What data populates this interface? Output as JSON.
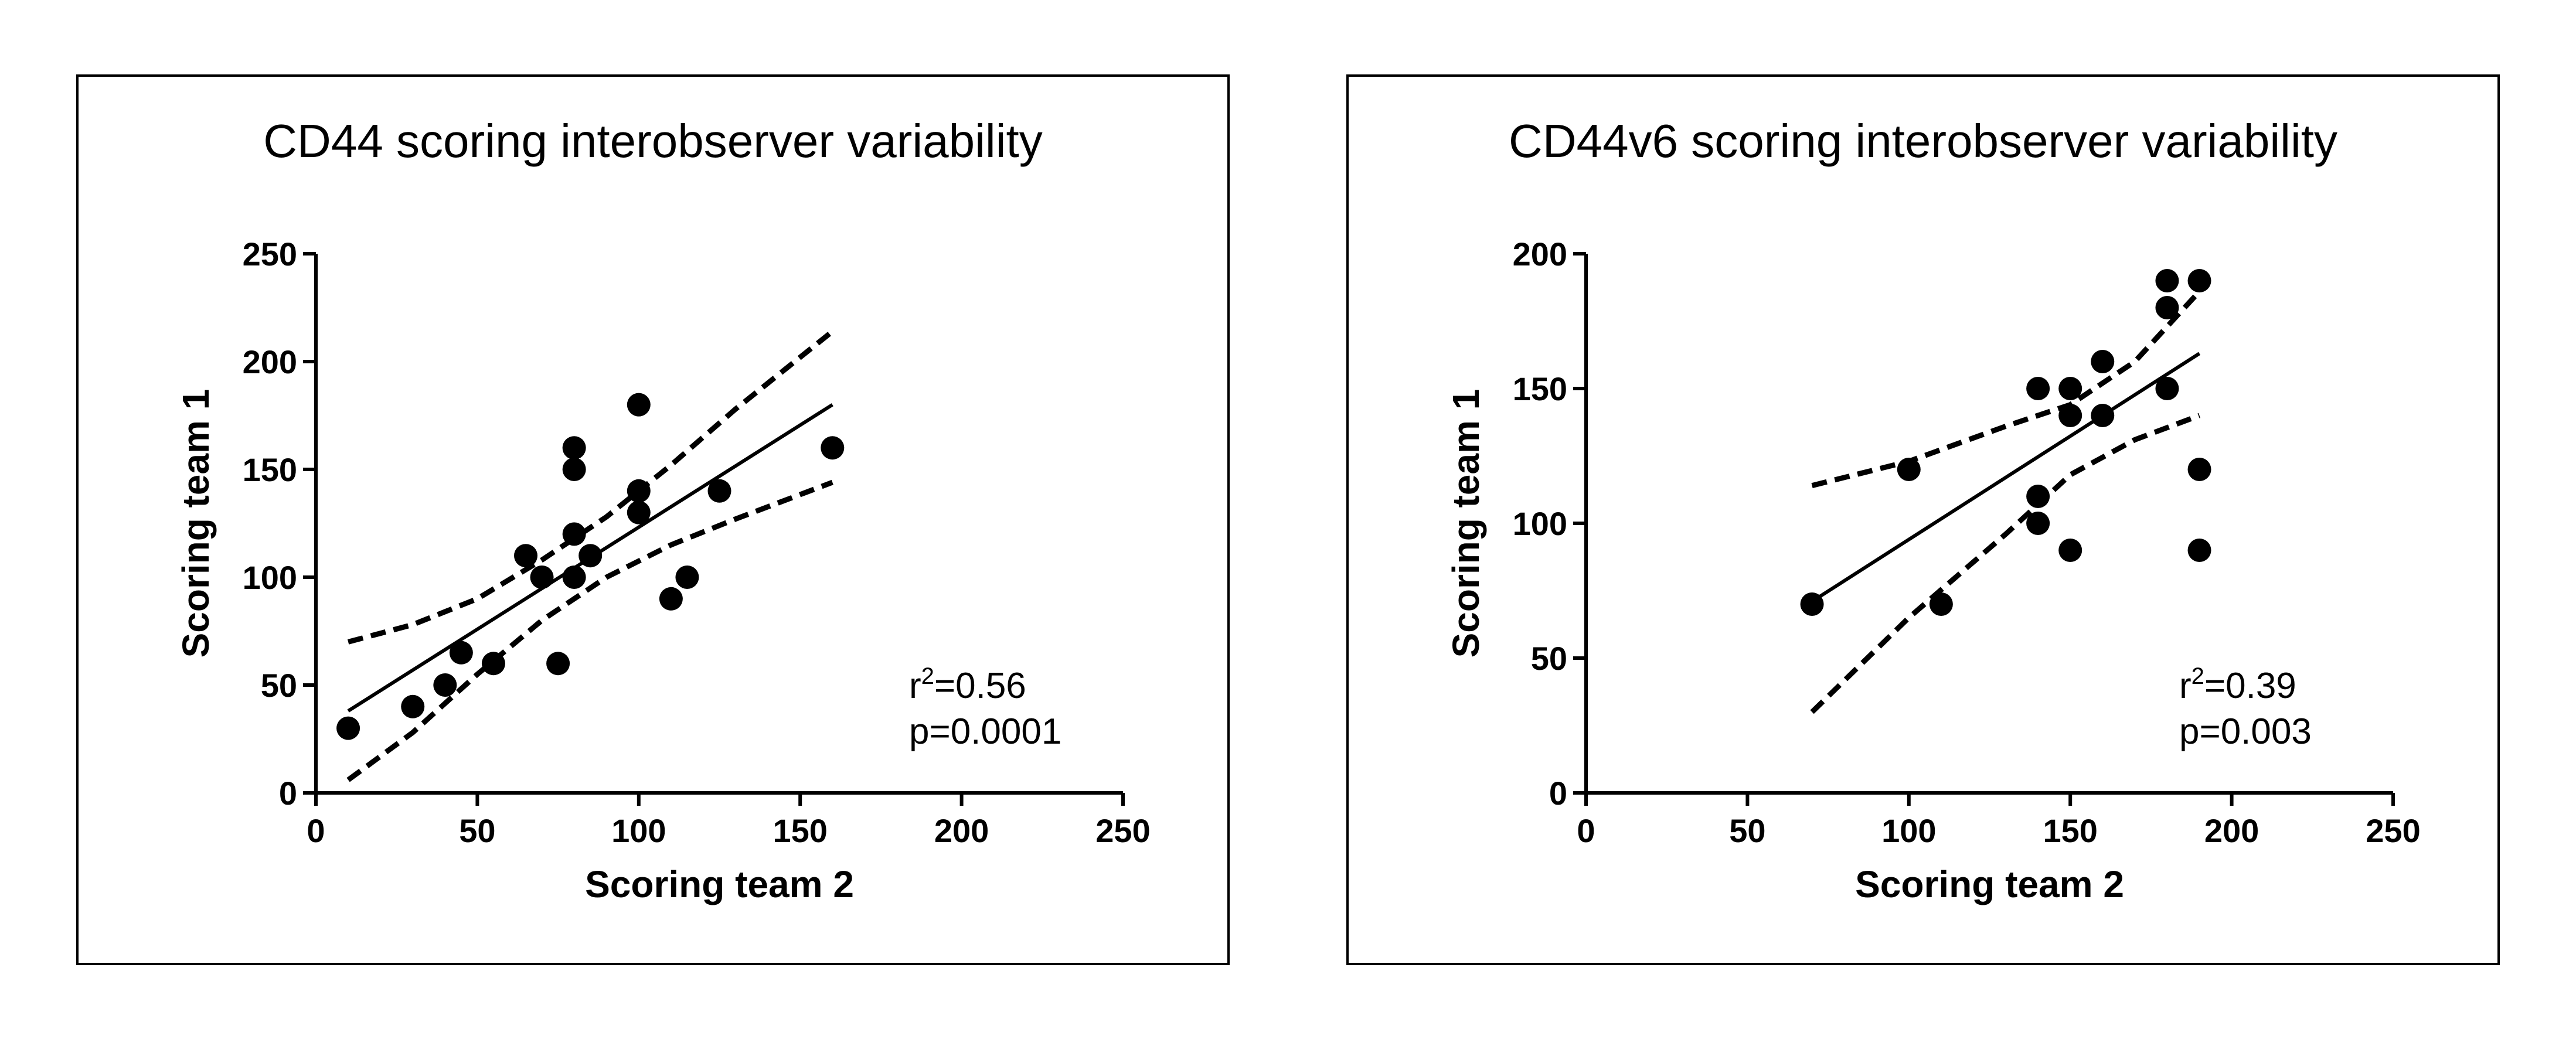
{
  "chart_data": [
    {
      "type": "scatter",
      "title": "CD44 scoring interobserver variability",
      "xlabel": "Scoring team 2",
      "ylabel": "Scoring team 1",
      "xlim": [
        0,
        250
      ],
      "ylim": [
        0,
        250
      ],
      "xticks": [
        0,
        50,
        100,
        150,
        200,
        250
      ],
      "yticks": [
        0,
        50,
        100,
        150,
        200,
        250
      ],
      "grid": false,
      "stats": {
        "r2_prefix": "r",
        "r2_sup": "2",
        "r2_value": "=0.56",
        "p_text": "p=0.0001"
      },
      "series": [
        {
          "kind": "points",
          "points": [
            [
              10,
              30
            ],
            [
              30,
              40
            ],
            [
              40,
              50
            ],
            [
              45,
              65
            ],
            [
              55,
              60
            ],
            [
              65,
              110
            ],
            [
              70,
              100
            ],
            [
              75,
              60
            ],
            [
              80,
              160
            ],
            [
              80,
              150
            ],
            [
              80,
              120
            ],
            [
              80,
              100
            ],
            [
              85,
              110
            ],
            [
              100,
              180
            ],
            [
              100,
              140
            ],
            [
              100,
              130
            ],
            [
              110,
              90
            ],
            [
              115,
              100
            ],
            [
              125,
              140
            ],
            [
              160,
              160
            ]
          ]
        },
        {
          "kind": "fit",
          "points": [
            [
              10,
              38
            ],
            [
              160,
              180
            ]
          ]
        },
        {
          "kind": "ci",
          "points": [
            [
              10,
              70
            ],
            [
              30,
              78
            ],
            [
              50,
              90
            ],
            [
              70,
              108
            ],
            [
              90,
              128
            ],
            [
              110,
              152
            ],
            [
              130,
              178
            ],
            [
              160,
              214
            ]
          ]
        },
        {
          "kind": "ci",
          "points": [
            [
              10,
              6
            ],
            [
              30,
              28
            ],
            [
              50,
              55
            ],
            [
              70,
              80
            ],
            [
              90,
              100
            ],
            [
              110,
              115
            ],
            [
              130,
              127
            ],
            [
              160,
              144
            ]
          ]
        }
      ]
    },
    {
      "type": "scatter",
      "title": "CD44v6 scoring interobserver variability",
      "xlabel": "Scoring team 2",
      "ylabel": "Scoring team 1",
      "xlim": [
        0,
        250
      ],
      "ylim": [
        0,
        200
      ],
      "xticks": [
        0,
        50,
        100,
        150,
        200,
        250
      ],
      "yticks": [
        0,
        50,
        100,
        150,
        200
      ],
      "grid": false,
      "stats": {
        "r2_prefix": "r",
        "r2_sup": "2",
        "r2_value": "=0.39",
        "p_text": "p=0.003"
      },
      "series": [
        {
          "kind": "points",
          "points": [
            [
              70,
              70
            ],
            [
              100,
              120
            ],
            [
              110,
              70
            ],
            [
              140,
              150
            ],
            [
              140,
              110
            ],
            [
              140,
              100
            ],
            [
              150,
              150
            ],
            [
              150,
              140
            ],
            [
              150,
              90
            ],
            [
              160,
              160
            ],
            [
              160,
              140
            ],
            [
              180,
              190
            ],
            [
              180,
              180
            ],
            [
              180,
              150
            ],
            [
              190,
              190
            ],
            [
              190,
              120
            ],
            [
              190,
              90
            ]
          ]
        },
        {
          "kind": "fit",
          "points": [
            [
              70,
              71
            ],
            [
              190,
              163
            ]
          ]
        },
        {
          "kind": "ci",
          "points": [
            [
              70,
              114
            ],
            [
              100,
              123
            ],
            [
              130,
              136
            ],
            [
              150,
              144
            ],
            [
              170,
              160
            ],
            [
              190,
              186
            ]
          ]
        },
        {
          "kind": "ci",
          "points": [
            [
              70,
              30
            ],
            [
              100,
              65
            ],
            [
              130,
              96
            ],
            [
              150,
              118
            ],
            [
              170,
              131
            ],
            [
              190,
              140
            ]
          ]
        }
      ]
    }
  ]
}
